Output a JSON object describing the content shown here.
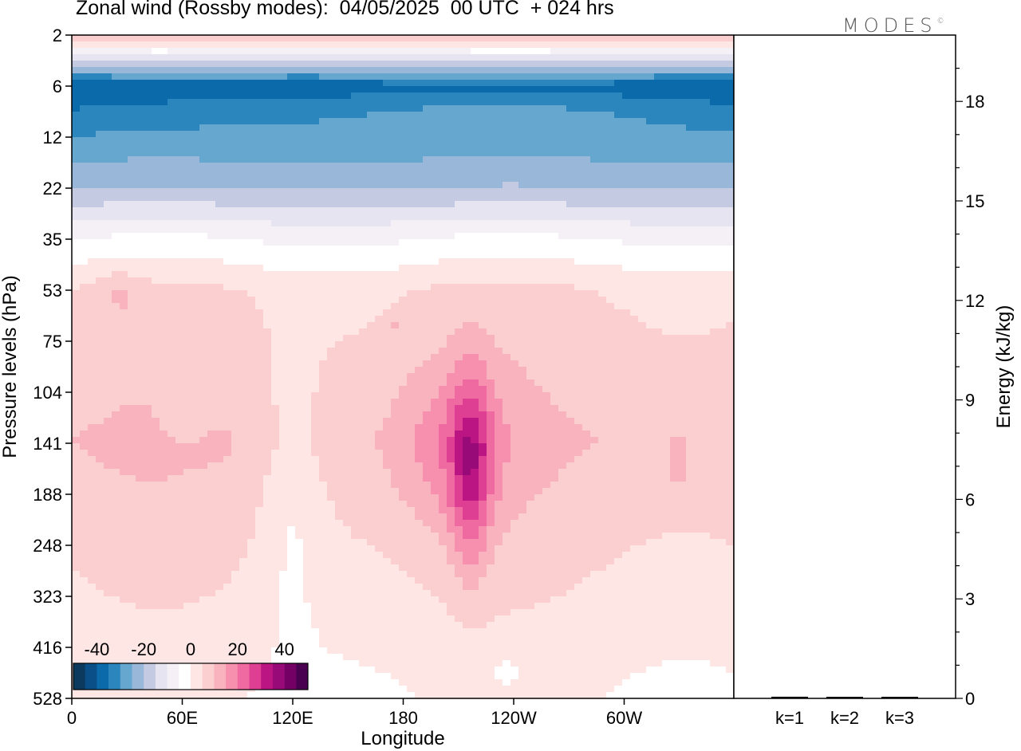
{
  "title": "Zonal wind (Rossby modes):  04/05/2025  00 UTC  + 024 hrs",
  "logo": "MODES",
  "logo_mark": "©",
  "chart_data": [
    {
      "type": "heatmap",
      "xlabel": "Longitude",
      "ylabel": "Pressure levels (hPa)",
      "x_ticks": [
        "0",
        "60E",
        "120E",
        "180",
        "120W",
        "60W"
      ],
      "y_ticks": [
        "2",
        "6",
        "12",
        "22",
        "35",
        "53",
        "75",
        "104",
        "141",
        "188",
        "248",
        "323",
        "416",
        "528"
      ],
      "colorbar": {
        "range": [
          -50,
          50
        ],
        "step": 5,
        "tick_labels": [
          "-40",
          "-20",
          "0",
          "20",
          "40"
        ],
        "colors": [
          "#0c3a5f",
          "#0a4f87",
          "#0b6aa9",
          "#2c86be",
          "#66a7cf",
          "#98b7d9",
          "#c4cae2",
          "#e5e4f0",
          "#f5f0f6",
          "#ffffff",
          "#fde6e4",
          "#fbcfcf",
          "#f9b3bf",
          "#f690ae",
          "#ee6aa0",
          "#de3f93",
          "#bb1584",
          "#980a78",
          "#740066",
          "#4a0050"
        ]
      },
      "field_description_levels": [
        {
          "level": "2",
          "value": 10
        },
        {
          "level": "6",
          "value": -40
        },
        {
          "level": "12",
          "value": -30
        },
        {
          "level": "22",
          "value": -20
        },
        {
          "level": "35",
          "value": -5
        },
        {
          "level": "53",
          "value": 5
        },
        {
          "level": "141",
          "value": 10
        },
        {
          "level": "528",
          "value": 0
        }
      ]
    },
    {
      "type": "bar",
      "categories": [
        "k=1",
        "k=2",
        "k=3"
      ],
      "values": [
        0.05,
        0.02,
        0.02
      ],
      "ylabel": "Energy (kJ/kg)",
      "ylim": [
        0,
        20
      ],
      "y_ticks": [
        "0",
        "3",
        "6",
        "9",
        "12",
        "15",
        "18"
      ]
    }
  ]
}
